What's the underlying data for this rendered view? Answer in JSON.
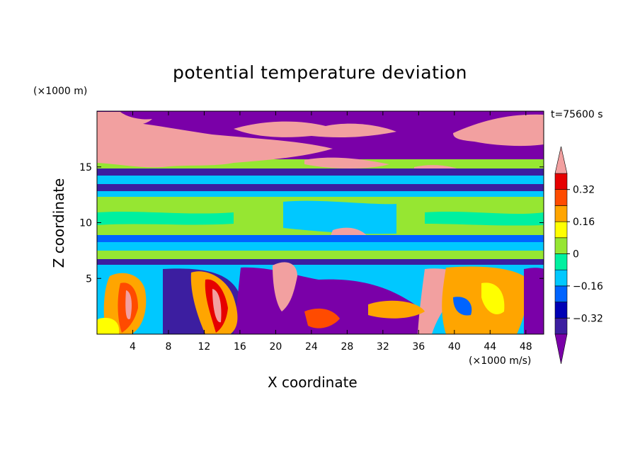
{
  "chart_data": {
    "type": "heatmap",
    "title": "potential temperature deviation",
    "xlabel": "X coordinate",
    "ylabel": "Z coordinate",
    "x_unit": "(×1000 m/s)",
    "y_unit": "(×1000 m)",
    "time_label": "t=75600 s",
    "xlim": [
      0,
      50
    ],
    "ylim": [
      0,
      20
    ],
    "x_ticks": [
      4,
      8,
      12,
      16,
      20,
      24,
      28,
      32,
      36,
      40,
      44,
      48
    ],
    "y_ticks": [
      5,
      10,
      15
    ],
    "colorbar": {
      "levels": [
        -0.4,
        -0.32,
        -0.24,
        -0.16,
        -0.08,
        0,
        0.08,
        0.16,
        0.24,
        0.32,
        0.4
      ],
      "tick_values": [
        -0.32,
        -0.16,
        0,
        0.16,
        0.32
      ],
      "tick_labels": [
        "−0.32",
        "−0.16",
        "0",
        "0.16",
        "0.32"
      ],
      "colors": [
        "#7a00a8",
        "#3c1ea0",
        "#0000b4",
        "#0064ff",
        "#00c8ff",
        "#00f0a0",
        "#96e632",
        "#ffff00",
        "#ffa500",
        "#ff4b00",
        "#e60000",
        "#f2a0a0"
      ],
      "extend": "both"
    }
  }
}
